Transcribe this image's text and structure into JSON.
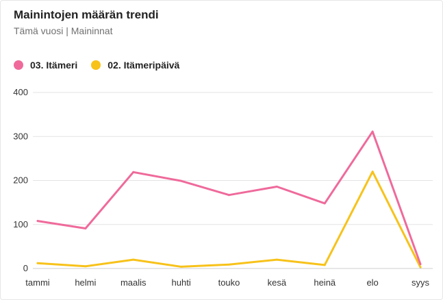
{
  "header": {
    "title": "Mainintojen määrän trendi",
    "subtitle": "Tämä vuosi | Maininnat"
  },
  "colors": {
    "series_1": "#ef6a9b",
    "series_2": "#f7c21a",
    "grid": "#e3e3e3"
  },
  "chart_data": {
    "type": "line",
    "title": "Mainintojen määrän trendi",
    "subtitle": "Tämä vuosi | Maininnat",
    "categories": [
      "tammi",
      "helmi",
      "maalis",
      "huhti",
      "touko",
      "kesä",
      "heinä",
      "elo",
      "syys"
    ],
    "series": [
      {
        "name": "03. Itämeri",
        "color": "#ef6a9b",
        "values": [
          108,
          91,
          219,
          199,
          167,
          186,
          148,
          311,
          10
        ]
      },
      {
        "name": "02. Itämeripäivä",
        "color": "#f7c21a",
        "values": [
          12,
          5,
          20,
          4,
          9,
          20,
          8,
          220,
          3
        ]
      }
    ],
    "ylim": [
      0,
      400
    ],
    "yticks": [
      0,
      100,
      200,
      300,
      400
    ],
    "grid": true,
    "legend_position": "top-left"
  }
}
